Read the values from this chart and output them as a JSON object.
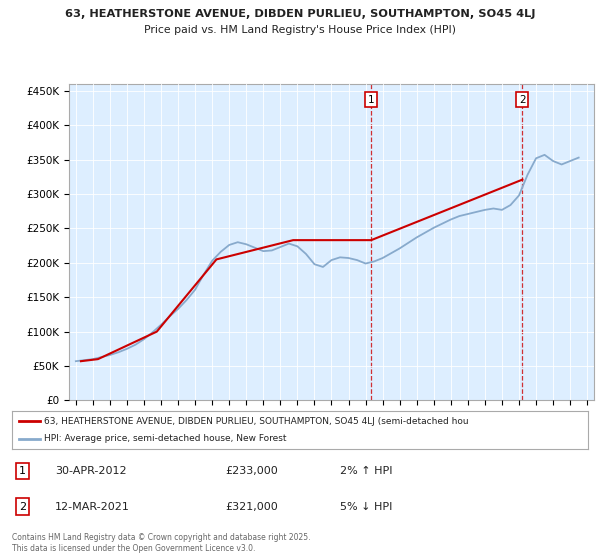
{
  "title_line1": "63, HEATHERSTONE AVENUE, DIBDEN PURLIEU, SOUTHAMPTON, SO45 4LJ",
  "title_line2": "Price paid vs. HM Land Registry's House Price Index (HPI)",
  "ylabel_ticks": [
    "£0",
    "£50K",
    "£100K",
    "£150K",
    "£200K",
    "£250K",
    "£300K",
    "£350K",
    "£400K",
    "£450K"
  ],
  "ytick_values": [
    0,
    50000,
    100000,
    150000,
    200000,
    250000,
    300000,
    350000,
    400000,
    450000
  ],
  "background_color": "#ddeeff",
  "legend_label1": "63, HEATHERSTONE AVENUE, DIBDEN PURLIEU, SOUTHAMPTON, SO45 4LJ (semi-detached hou",
  "legend_label2": "HPI: Average price, semi-detached house, New Forest",
  "annotation1_label": "1",
  "annotation1_date": "30-APR-2012",
  "annotation1_price": "£233,000",
  "annotation1_hpi": "2% ↑ HPI",
  "annotation2_label": "2",
  "annotation2_date": "12-MAR-2021",
  "annotation2_price": "£321,000",
  "annotation2_hpi": "5% ↓ HPI",
  "footer": "Contains HM Land Registry data © Crown copyright and database right 2025.\nThis data is licensed under the Open Government Licence v3.0.",
  "line1_color": "#cc0000",
  "line2_color": "#88aacc",
  "vline_color": "#cc0000",
  "ann1_x": 2012.33,
  "ann2_x": 2021.2,
  "hpi_data_x": [
    1995.0,
    1995.5,
    1996.0,
    1996.5,
    1997.0,
    1997.5,
    1998.0,
    1998.5,
    1999.0,
    1999.5,
    2000.0,
    2000.5,
    2001.0,
    2001.5,
    2002.0,
    2002.5,
    2003.0,
    2003.5,
    2004.0,
    2004.5,
    2005.0,
    2005.5,
    2006.0,
    2006.5,
    2007.0,
    2007.5,
    2008.0,
    2008.5,
    2009.0,
    2009.5,
    2010.0,
    2010.5,
    2011.0,
    2011.5,
    2012.0,
    2012.5,
    2013.0,
    2013.5,
    2014.0,
    2014.5,
    2015.0,
    2015.5,
    2016.0,
    2016.5,
    2017.0,
    2017.5,
    2018.0,
    2018.5,
    2019.0,
    2019.5,
    2020.0,
    2020.5,
    2021.0,
    2021.5,
    2022.0,
    2022.5,
    2023.0,
    2023.5,
    2024.0,
    2024.5
  ],
  "hpi_data_y": [
    57000,
    58500,
    60000,
    63000,
    66000,
    70000,
    75000,
    81000,
    89000,
    99000,
    110000,
    122000,
    133000,
    146000,
    161000,
    183000,
    203000,
    216000,
    226000,
    230000,
    227000,
    222000,
    217000,
    218000,
    223000,
    228000,
    224000,
    213000,
    198000,
    194000,
    204000,
    208000,
    207000,
    204000,
    199000,
    202000,
    207000,
    214000,
    221000,
    229000,
    237000,
    244000,
    251000,
    257000,
    263000,
    268000,
    271000,
    274000,
    277000,
    279000,
    277000,
    284000,
    298000,
    328000,
    352000,
    357000,
    348000,
    343000,
    348000,
    353000
  ],
  "price_data_x": [
    1995.3,
    1996.3,
    1999.75,
    2003.25,
    2007.75,
    2012.33,
    2021.2
  ],
  "price_data_y": [
    57000,
    60000,
    100000,
    205000,
    233000,
    233000,
    321000
  ],
  "xlim": [
    1994.6,
    2025.4
  ],
  "ylim": [
    0,
    460000
  ]
}
